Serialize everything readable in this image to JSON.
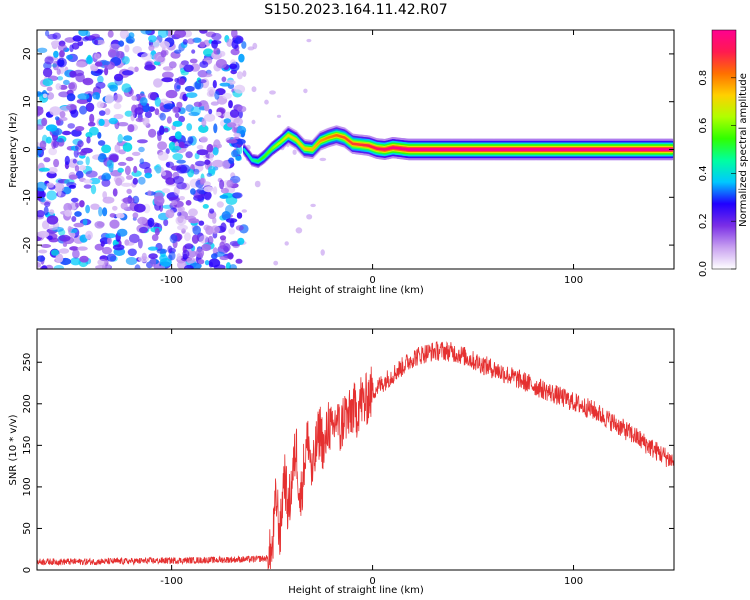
{
  "title": "S150.2023.164.11.42.R07",
  "chart_data": [
    {
      "type": "heatmap",
      "title": "",
      "xlabel": "Height of straight line (km)",
      "ylabel": "Frequency (Hz)",
      "xlim": [
        -167,
        150
      ],
      "ylim": [
        -25,
        25
      ],
      "xticks": [
        -100,
        0,
        100
      ],
      "yticks": [
        -20,
        -10,
        0,
        10,
        20
      ],
      "colorbar": {
        "label": "Normalized spectral amplitude",
        "range": [
          0,
          1
        ],
        "ticks": [
          0.0,
          0.2,
          0.4,
          0.6,
          0.8
        ],
        "colors": [
          "#ffffff",
          "#c8a0f0",
          "#7a2ee6",
          "#2000ff",
          "#00c8ff",
          "#00ffa0",
          "#30ff00",
          "#b0ff00",
          "#ffd000",
          "#ff7000",
          "#ff1a50",
          "#ff0090"
        ]
      },
      "noise_region": {
        "x_range": [
          -167,
          -64
        ],
        "y_range": [
          -25,
          25
        ],
        "amplitude": [
          0.1,
          0.3
        ]
      },
      "ridge": {
        "x": [
          -64,
          -60,
          -57,
          -54,
          -50,
          -46,
          -42,
          -38,
          -34,
          -30,
          -26,
          -22,
          -18,
          -14,
          -10,
          -6,
          -2,
          2,
          6,
          10,
          14,
          18,
          30,
          60,
          100,
          149
        ],
        "y": [
          0.0,
          -2.2,
          -2.5,
          -1.5,
          0.2,
          1.5,
          3.0,
          2.0,
          0.2,
          0.0,
          1.8,
          2.5,
          3.0,
          2.5,
          1.2,
          1.0,
          0.8,
          0.2,
          0.0,
          0.4,
          0.2,
          0.0,
          0.0,
          0.0,
          0.0,
          0.0
        ],
        "amplitude": [
          0.4,
          0.45,
          0.5,
          0.55,
          0.6,
          0.65,
          0.7,
          0.72,
          0.74,
          0.75,
          0.78,
          0.8,
          0.82,
          0.85,
          0.87,
          0.88,
          0.9,
          0.92,
          0.95,
          0.97,
          0.98,
          1.0,
          1.0,
          1.0,
          1.0,
          1.0
        ]
      }
    },
    {
      "type": "line",
      "title": "",
      "xlabel": "Height of straight line (km)",
      "ylabel": "SNR (10 * v/v)",
      "xlim": [
        -167,
        150
      ],
      "ylim": [
        0,
        290
      ],
      "xticks": [
        -100,
        0,
        100
      ],
      "yticks": [
        0,
        50,
        100,
        150,
        200,
        250
      ],
      "color": "#e53030",
      "series": [
        {
          "x": [
            -167,
            -140,
            -110,
            -80,
            -60,
            -52,
            -50,
            -48,
            -46,
            -44,
            -42,
            -40,
            -38,
            -36,
            -34,
            -32,
            -30,
            -28,
            -26,
            -24,
            -22,
            -20,
            -18,
            -16,
            -14,
            -12,
            -10,
            -8,
            -6,
            -4,
            -2,
            0,
            5,
            10,
            15,
            20,
            25,
            30,
            35,
            40,
            45,
            50,
            60,
            70,
            80,
            90,
            100,
            110,
            120,
            130,
            140,
            150
          ],
          "y": [
            10,
            10,
            11,
            12,
            13,
            14,
            20,
            90,
            40,
            120,
            70,
            110,
            150,
            80,
            130,
            160,
            110,
            150,
            170,
            140,
            180,
            160,
            185,
            165,
            190,
            180,
            195,
            190,
            205,
            200,
            210,
            215,
            225,
            235,
            245,
            255,
            260,
            263,
            264,
            262,
            258,
            252,
            242,
            232,
            222,
            212,
            202,
            192,
            177,
            162,
            145,
            130
          ],
          "noise": 12
        }
      ]
    }
  ]
}
